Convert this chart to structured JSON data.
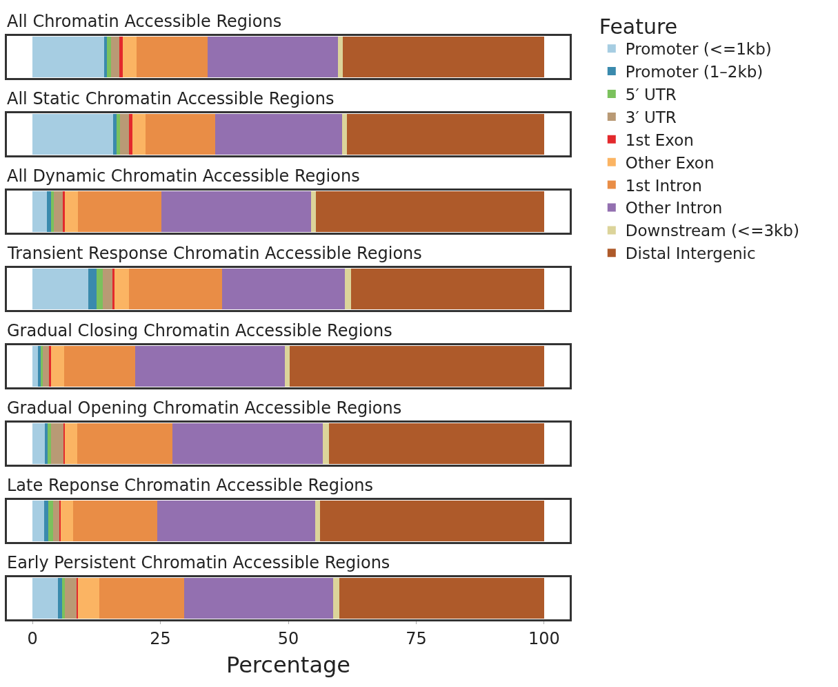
{
  "chart_data": {
    "type": "bar",
    "orientation": "horizontal",
    "stacked": true,
    "xlabel": "Percentage",
    "xlim": [
      -5,
      105
    ],
    "xticks": [
      0,
      25,
      50,
      75,
      100
    ],
    "legend": "right",
    "legend_title": "Feature",
    "categories": [
      "All Chromatin Accessible Regions",
      "All Static Chromatin Accessible Regions",
      "All Dynamic Chromatin Accessible Regions",
      "Transient Response Chromatin Accessible Regions",
      "Gradual Closing Chromatin Accessible Regions",
      "Gradual Opening Chromatin Accessible Regions",
      "Late Reponse Chromatin Accessible Regions",
      "Early Persistent Chromatin Accessible Regions"
    ],
    "series": [
      {
        "name": "Promoter (<=1kb)",
        "color": "#a6cde2",
        "values": [
          14.0,
          15.7,
          2.8,
          10.9,
          1.1,
          2.4,
          2.3,
          5.0
        ]
      },
      {
        "name": "Promoter (1–2kb)",
        "color": "#3a8aad",
        "values": [
          0.6,
          0.7,
          0.8,
          1.6,
          0.5,
          0.6,
          0.8,
          0.8
        ]
      },
      {
        "name": "5′ UTR",
        "color": "#7bc15d",
        "values": [
          0.8,
          0.7,
          0.6,
          1.2,
          0.4,
          0.6,
          0.9,
          0.5
        ]
      },
      {
        "name": "3′ UTR",
        "color": "#b99a75",
        "values": [
          1.6,
          1.8,
          1.7,
          1.9,
          1.2,
          2.4,
          1.2,
          2.3
        ]
      },
      {
        "name": "1st Exon",
        "color": "#e3292c",
        "values": [
          0.7,
          0.6,
          0.4,
          0.4,
          0.4,
          0.3,
          0.3,
          0.3
        ]
      },
      {
        "name": "Other Exon",
        "color": "#fbb463",
        "values": [
          2.6,
          2.6,
          2.6,
          2.9,
          2.6,
          2.4,
          2.4,
          4.1
        ]
      },
      {
        "name": "1st Intron",
        "color": "#e98d46",
        "values": [
          13.9,
          13.6,
          16.3,
          18.1,
          13.9,
          18.7,
          16.5,
          16.7
        ]
      },
      {
        "name": "Other Intron",
        "color": "#9370b0",
        "values": [
          25.5,
          24.8,
          29.2,
          24.1,
          29.2,
          29.4,
          30.9,
          29.0
        ]
      },
      {
        "name": "Downstream (<=3kb)",
        "color": "#dcd49a",
        "values": [
          1.0,
          1.0,
          1.0,
          1.2,
          1.0,
          1.1,
          0.9,
          1.3
        ]
      },
      {
        "name": "Distal Intergenic",
        "color": "#ae5a2a",
        "values": [
          39.3,
          38.5,
          44.6,
          37.7,
          49.7,
          42.1,
          43.8,
          40.0
        ]
      }
    ]
  }
}
